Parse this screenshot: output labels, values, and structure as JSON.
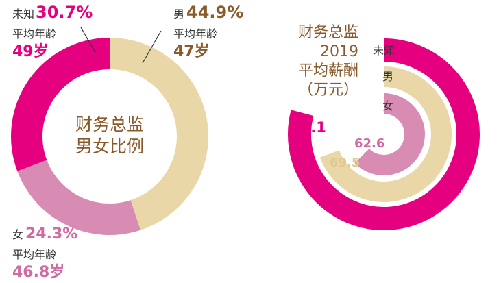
{
  "colors": {
    "unknown": "#e4007f",
    "male": "#ead7a8",
    "female": "#d98cb3",
    "male_text": "#8b5a2b",
    "female_text": "#d06aa0",
    "label_dark": "#333333",
    "center_text": "#8b5a2b"
  },
  "chart_data": [
    {
      "type": "pie",
      "variant": "donut",
      "title": "财务总监男女比例",
      "title_lines": [
        "财务总监",
        "男女比例"
      ],
      "categories": [
        "男",
        "女",
        "未知"
      ],
      "values": [
        44.9,
        24.3,
        30.7
      ],
      "value_labels": [
        "44.9%",
        "24.3%",
        "30.7%"
      ],
      "avg_age_caption": "平均年龄",
      "avg_age_labels": [
        "47岁",
        "46.8岁",
        "49岁"
      ]
    },
    {
      "type": "bar",
      "variant": "radial",
      "title": "财务总监 2019 平均薪酬 （万元）",
      "title_lines": [
        "财务总监",
        "2019",
        "平均薪酬",
        "（万元）"
      ],
      "categories": [
        "未知",
        "男",
        "女"
      ],
      "values": [
        79.1,
        69.5,
        62.6
      ],
      "value_labels": [
        "79.1",
        "69.5",
        "62.6"
      ]
    }
  ]
}
